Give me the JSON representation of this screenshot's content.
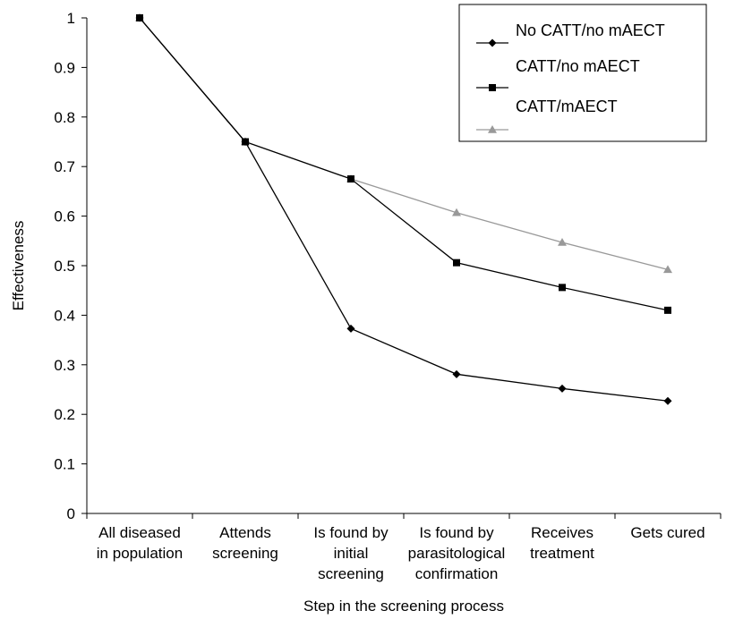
{
  "chart_data": {
    "type": "line",
    "title": "",
    "xlabel": "Step in the screening process",
    "ylabel": "Effectiveness",
    "ylim": [
      0,
      1
    ],
    "yticks": [
      "0",
      "0.1",
      "0.2",
      "0.3",
      "0.4",
      "0.5",
      "0.6",
      "0.7",
      "0.8",
      "0.9",
      "1"
    ],
    "grid": false,
    "legend_position": "top-right",
    "categories": [
      [
        "All diseased",
        "in population"
      ],
      [
        "Attends",
        "screening"
      ],
      [
        "Is found by",
        "initial",
        "screening"
      ],
      [
        "Is found by",
        "parasitological",
        "confirmation"
      ],
      [
        "Receives",
        "treatment"
      ],
      [
        "Gets cured"
      ]
    ],
    "series": [
      {
        "name": "No CATT/no mAECT",
        "marker": "diamond",
        "color": "#000000",
        "values": [
          1.0,
          0.75,
          0.373,
          0.281,
          0.252,
          0.227
        ]
      },
      {
        "name": "CATT/no mAECT",
        "marker": "square",
        "color": "#000000",
        "values": [
          1.0,
          0.75,
          0.675,
          0.506,
          0.456,
          0.41
        ]
      },
      {
        "name": "CATT/mAECT",
        "marker": "triangle",
        "color": "#999999",
        "values": [
          1.0,
          0.75,
          0.675,
          0.607,
          0.547,
          0.492
        ]
      }
    ]
  }
}
